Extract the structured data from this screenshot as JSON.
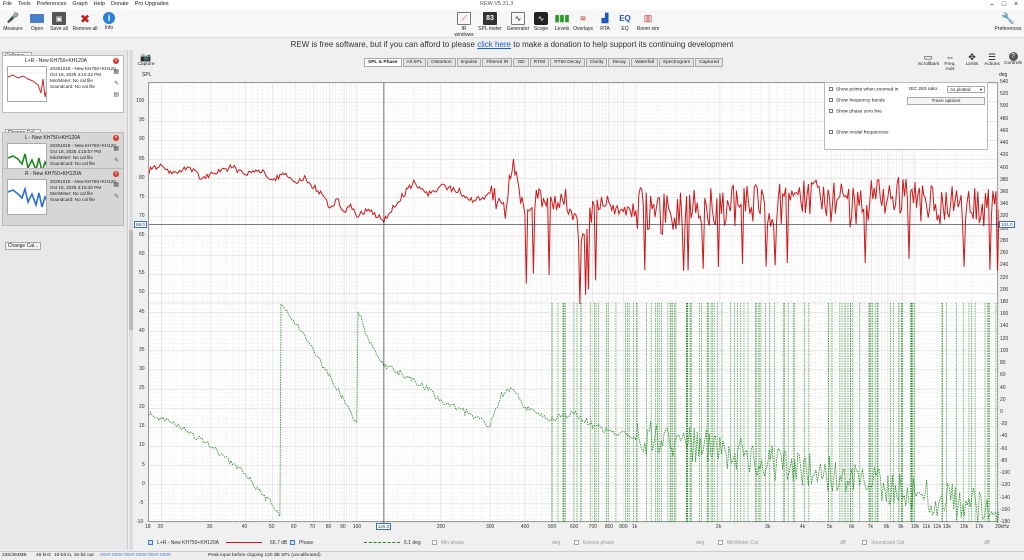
{
  "window": {
    "title": "REW V5.31.3"
  },
  "menu": [
    "File",
    "Tools",
    "Preferences",
    "Graph",
    "Help",
    "Donate",
    "Pro Upgrades"
  ],
  "toolbar": {
    "left": [
      {
        "label": "Measure",
        "icon": "microphone-icon"
      },
      {
        "label": "Open",
        "icon": "folder-icon"
      },
      {
        "label": "Save all",
        "icon": "save-icon"
      },
      {
        "label": "Remove all",
        "icon": "remove-all-icon"
      },
      {
        "label": "Info",
        "icon": "info-icon"
      }
    ],
    "center": [
      {
        "label": "IR windows",
        "icon": "ir-windows-icon"
      },
      {
        "label": "SPL meter",
        "icon": "spl-meter-icon",
        "badge": "83"
      },
      {
        "label": "Generator",
        "icon": "generator-icon"
      },
      {
        "label": "Scope",
        "icon": "scope-icon"
      },
      {
        "label": "Levels",
        "icon": "levels-icon"
      },
      {
        "label": "Overlays",
        "icon": "overlays-icon"
      },
      {
        "label": "RTA",
        "icon": "rta-icon"
      },
      {
        "label": "EQ",
        "icon": "eq-icon"
      },
      {
        "label": "Room sim",
        "icon": "room-sim-icon"
      }
    ],
    "right": {
      "label": "Preferences",
      "icon": "preferences-icon"
    }
  },
  "donate": {
    "prefix": "REW is free software, but if you can afford to please ",
    "link": "click here",
    "suffix": " to make a donation to help support its continuing development"
  },
  "sidebar": {
    "collapse_label": "Collapse",
    "change_cal_label": "Change Cal...",
    "measurements": [
      {
        "title": "L+R - New KH750+KH120A",
        "date": "20251018 - New KH750+KH120",
        "time": "Oct 18, 2025 4:15:22 PM",
        "mic": "Mic/Meter: No cal file",
        "soundcard": "Soundcard: No cal file",
        "color": "#d42020"
      },
      {
        "title": "L - New KH750+KH120A",
        "date": "20251018 - New KH750+KH120",
        "time": "Oct 18, 2025 4:16:07 PM",
        "mic": "Mic/Meter: No cal file",
        "soundcard": "Soundcard: No cal file",
        "color": "#1e8a1e"
      },
      {
        "title": "R - New KH750+KH120A",
        "date": "20251018 - New KH750+KH120",
        "time": "Oct 18, 2025 4:16:40 PM",
        "mic": "Mic/Meter: No cal file",
        "soundcard": "Soundcard: No cal file",
        "color": "#2a6fd6"
      }
    ]
  },
  "capture": {
    "label": "Capture",
    "unit": "SPL"
  },
  "tabs": [
    "SPL & Phase",
    "All SPL",
    "Distortion",
    "Impulse",
    "Filtered IR",
    "GD",
    "RT60",
    "RT60 Decay",
    "Clarity",
    "Decay",
    "Waterfall",
    "Spectrogram",
    "Captured"
  ],
  "active_tab": "SPL & Phase",
  "right_tools": [
    {
      "label": "Scrollbars",
      "icon": "scrollbars-icon"
    },
    {
      "label": "Freq. Axis",
      "icon": "freq-axis-icon"
    },
    {
      "label": "Limits",
      "icon": "limits-icon"
    },
    {
      "label": "Actions",
      "icon": "actions-icon"
    },
    {
      "label": "Controls",
      "icon": "controls-icon"
    }
  ],
  "options_panel": {
    "show_points": "Show points when zoomed in",
    "iec_label": "IEC 263 ratio:",
    "iec_value": "As plotted",
    "show_bands": "Show frequency bands",
    "show_phase_zero": "Show phase zero line",
    "trace_options": "Trace options",
    "show_modal": "Show modal frequencies"
  },
  "legend": {
    "trace1": "L+R - New KH750+KH120A",
    "trace1_value": "65.7 dB",
    "phase_label": "Phase",
    "phase_value": "5.1 deg",
    "min_phase": "Min phase",
    "min_phase_unit": "deg",
    "excess_phase": "Excess phase",
    "excess_unit": "deg",
    "mic_cal": "Mic/Meter Cal",
    "mic_cal_unit": "dB",
    "sc_cal": "Soundcard Cal",
    "sc_cal_unit": "dB"
  },
  "status": {
    "memory": "235/384MB",
    "rate": "48 kHz",
    "bits": "16-bit in, 16-bit out",
    "levels": "0000 0000 0000 0000 0000 0000",
    "peak": "Peak input before clipping 120 dB SPL (uncalibrated)"
  },
  "cursor": {
    "freq": "125.0",
    "spl": "68.0",
    "phase": "104.0"
  },
  "chart_data": {
    "type": "line",
    "x_scale": "log",
    "xlim": [
      18,
      20000
    ],
    "x_ticks": [
      18,
      20,
      30,
      40,
      50,
      60,
      70,
      80,
      90,
      100,
      200,
      300,
      400,
      500,
      600,
      700,
      800,
      900,
      1000,
      2000,
      3000,
      4000,
      5000,
      6000,
      7000,
      8000,
      9000,
      10000,
      11000,
      12000,
      13000,
      15000,
      17000,
      20000
    ],
    "x_tick_labels": [
      "18",
      "20",
      "30",
      "40",
      "50",
      "60",
      "70",
      "80",
      "90",
      "100",
      "200",
      "300",
      "400",
      "500",
      "600",
      "700",
      "800",
      "900",
      "1k",
      "2k",
      "3k",
      "4k",
      "5k",
      "6k",
      "7k",
      "8k",
      "9k",
      "10k",
      "11k",
      "12k",
      "13k",
      "15k",
      "17k",
      "20kHz"
    ],
    "ylim_left": [
      -10,
      105
    ],
    "y_ticks_left": [
      -10,
      -5,
      0,
      5,
      10,
      15,
      20,
      25,
      30,
      35,
      40,
      45,
      50,
      55,
      60,
      65,
      70,
      75,
      80,
      85,
      90,
      95,
      100
    ],
    "ylabel_left": "SPL",
    "ylim_right": [
      -180,
      540
    ],
    "y_ticks_right": [
      -180,
      -160,
      -140,
      -120,
      -100,
      -80,
      -60,
      -40,
      -20,
      0,
      20,
      40,
      60,
      80,
      100,
      120,
      140,
      160,
      180,
      200,
      220,
      240,
      260,
      280,
      300,
      320,
      340,
      360,
      380,
      400,
      420,
      440,
      460,
      480,
      500,
      520,
      540
    ],
    "ylabel_right": "deg",
    "grid": true,
    "series": [
      {
        "name": "L+R - New KH750+KH120A",
        "axis": "left",
        "color": "#d01818",
        "x": [
          18,
          20,
          22,
          25,
          28,
          32,
          36,
          40,
          45,
          50,
          55,
          60,
          65,
          70,
          75,
          80,
          85,
          90,
          95,
          100,
          110,
          125,
          140,
          160,
          180,
          200,
          230,
          260,
          300,
          340,
          360,
          400,
          450,
          500,
          560,
          630,
          700,
          800,
          900,
          1000,
          1200,
          1500,
          2000,
          2500,
          3000,
          4000,
          5000,
          6000,
          8000,
          10000,
          12000,
          15000,
          20000
        ],
        "y": [
          82,
          84,
          81,
          83,
          80,
          82,
          83,
          81,
          82,
          80,
          81,
          79,
          80,
          78,
          76,
          72,
          75,
          71,
          73,
          70,
          72,
          69,
          74,
          79,
          76,
          78,
          77,
          74,
          76,
          72,
          84,
          71,
          76,
          73,
          75,
          66,
          72,
          74,
          70,
          73,
          71,
          72,
          73,
          74,
          73,
          75,
          74,
          73,
          76,
          75,
          74,
          73,
          72
        ]
      },
      {
        "name": "Phase",
        "axis": "right",
        "color": "#1e8a1e",
        "x": [
          18,
          20,
          25,
          30,
          35,
          40,
          45,
          50,
          53,
          53.5,
          60,
          70,
          80,
          90,
          100,
          101,
          110,
          125,
          150,
          180,
          200,
          250,
          300,
          330,
          360,
          400,
          500,
          600,
          700,
          800,
          1000,
          1500,
          2000,
          3000,
          5000,
          8000,
          12000,
          20000
        ],
        "y": [
          0,
          -10,
          -30,
          -55,
          -80,
          -100,
          -130,
          -150,
          -170,
          180,
          150,
          100,
          60,
          20,
          -20,
          170,
          120,
          80,
          60,
          40,
          20,
          0,
          -20,
          30,
          40,
          10,
          -10,
          0,
          -20,
          -30,
          -40,
          -50,
          -60,
          -80,
          -100,
          -120,
          -140,
          -160
        ]
      }
    ]
  }
}
